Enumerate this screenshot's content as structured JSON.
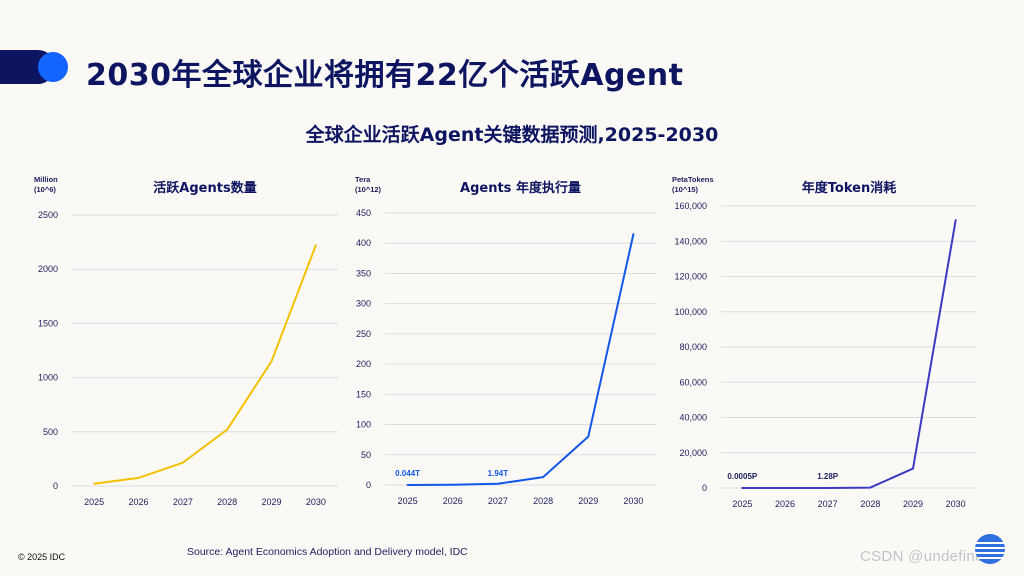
{
  "header": {
    "title": "2030年全球企业将拥有22亿个活跃Agent",
    "subtitle": "全球企业活跃Agent关键数据预测,2025-2030"
  },
  "footer": {
    "source": "Source: Agent Economics Adoption and Delivery model, IDC",
    "copyright": "© 2025 IDC",
    "watermark": "CSDN @undefined"
  },
  "colors": {
    "title_navy": "#0e1560",
    "accent_blue": "#1464ff",
    "series_yellow": "#f2c200",
    "series_blue": "#1258e8",
    "series_indigo": "#3b3ac4"
  },
  "chart_data": [
    {
      "type": "line",
      "title": "活跃Agents数量",
      "ylabel": "Million\n(10^6)",
      "x": [
        "2025",
        "2026",
        "2027",
        "2028",
        "2029",
        "2030"
      ],
      "series": [
        {
          "values": [
            20,
            75,
            215,
            520,
            1150,
            2220
          ],
          "color": "#f2c200"
        }
      ],
      "ylim": [
        0,
        2500
      ],
      "yticks": [
        0,
        500,
        1000,
        1500,
        2000,
        2500
      ],
      "ytick_labels": [
        "0",
        "500",
        "1000",
        "1500",
        "2000",
        "2500"
      ],
      "annotations": [],
      "grid": true
    },
    {
      "type": "line",
      "title": "Agents 年度执行量",
      "ylabel": "Tera\n(10^12)",
      "x": [
        "2025",
        "2026",
        "2027",
        "2028",
        "2029",
        "2030"
      ],
      "series": [
        {
          "values": [
            0.044,
            0.3,
            1.94,
            13,
            80,
            415
          ],
          "color": "#1258e8"
        }
      ],
      "ylim": [
        0,
        450
      ],
      "yticks": [
        0,
        50,
        100,
        150,
        200,
        250,
        300,
        350,
        400,
        450
      ],
      "ytick_labels": [
        "0",
        "50",
        "100",
        "150",
        "200",
        "250",
        "300",
        "350",
        "400",
        "450"
      ],
      "annotations": [
        {
          "x": "2025",
          "text": "0.044T"
        },
        {
          "x": "2027",
          "text": "1.94T"
        }
      ],
      "grid": true
    },
    {
      "type": "line",
      "title": "年度Token消耗",
      "ylabel": "PetaTokens\n(10^15)",
      "x": [
        "2025",
        "2026",
        "2027",
        "2028",
        "2029",
        "2030"
      ],
      "series": [
        {
          "values": [
            0.0005,
            0.1,
            1.28,
            200,
            11000,
            152000
          ],
          "color": "#3b3ac4"
        }
      ],
      "ylim": [
        0,
        160000
      ],
      "yticks": [
        0,
        20000,
        40000,
        60000,
        80000,
        100000,
        120000,
        140000,
        160000
      ],
      "ytick_labels": [
        "0",
        "20,000",
        "40,000",
        "60,000",
        "80,000",
        "100,000",
        "120,000",
        "140,000",
        "160,000"
      ],
      "annotations": [
        {
          "x": "2025",
          "text": "0.0005P"
        },
        {
          "x": "2027",
          "text": "1.28P"
        }
      ],
      "grid": true
    }
  ]
}
